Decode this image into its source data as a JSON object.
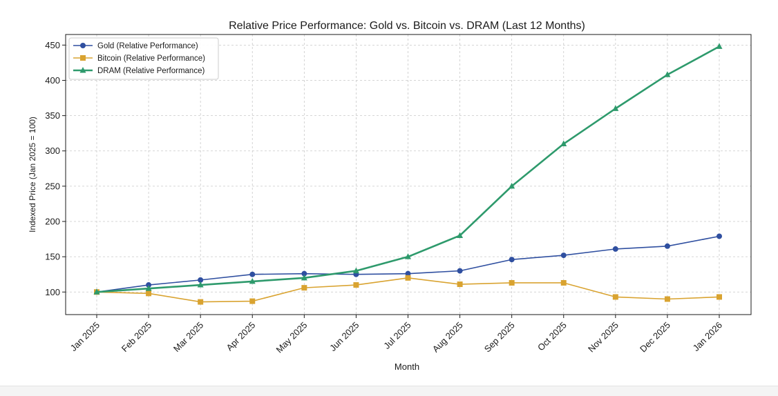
{
  "chart_data": {
    "type": "line",
    "title": "Relative Price Performance: Gold vs. Bitcoin vs. DRAM (Last 12 Months)",
    "xlabel": "Month",
    "ylabel": "Indexed Price (Jan 2025 = 100)",
    "ylim": [
      68,
      465
    ],
    "yticks": [
      100,
      150,
      200,
      250,
      300,
      350,
      400,
      450
    ],
    "grid": true,
    "legend_position": "top-left",
    "categories": [
      "Jan 2025",
      "Feb 2025",
      "Mar 2025",
      "Apr 2025",
      "May 2025",
      "Jun 2025",
      "Jul 2025",
      "Aug 2025",
      "Sep 2025",
      "Oct 2025",
      "Nov 2025",
      "Dec 2025",
      "Jan 2026"
    ],
    "series": [
      {
        "name": "Gold (Relative Performance)",
        "color": "#2f4fa0",
        "marker": "circle",
        "values": [
          100,
          110,
          117,
          125,
          126,
          125,
          126,
          130,
          146,
          152,
          161,
          165,
          179
        ]
      },
      {
        "name": "Bitcoin (Relative Performance)",
        "color": "#d9a330",
        "marker": "square",
        "values": [
          100,
          98,
          86,
          87,
          106,
          110,
          120,
          111,
          113,
          113,
          93,
          90,
          93
        ]
      },
      {
        "name": "DRAM (Relative Performance)",
        "color": "#2e9a6c",
        "marker": "triangle",
        "values": [
          100,
          105,
          110,
          115,
          120,
          130,
          150,
          180,
          250,
          310,
          360,
          408,
          448
        ]
      }
    ]
  }
}
